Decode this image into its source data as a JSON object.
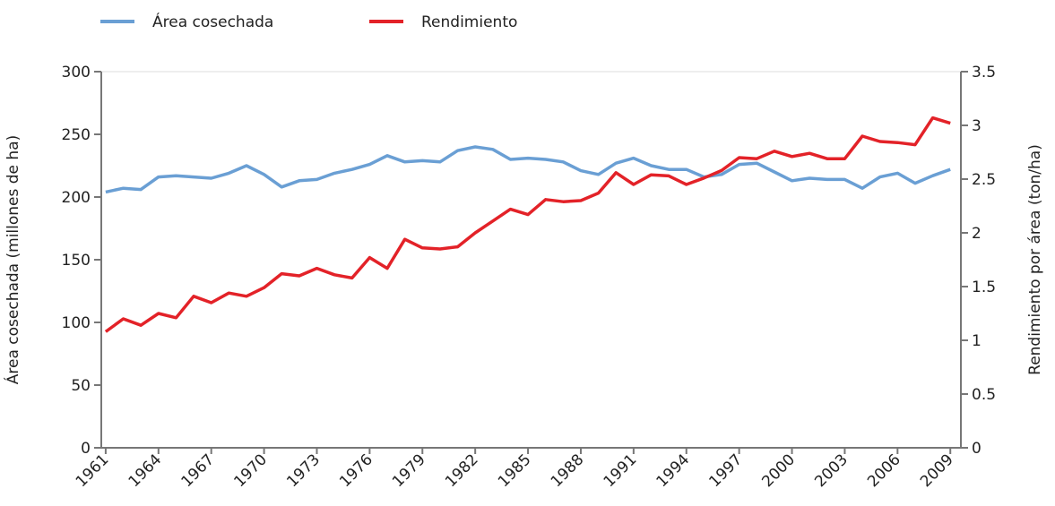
{
  "chart_data": {
    "type": "line",
    "y_label": "Área cosechada (millones de ha)",
    "y2_label": "Rendimiento por área (ton/ha)",
    "x": [
      1961,
      1962,
      1963,
      1964,
      1965,
      1966,
      1967,
      1968,
      1969,
      1970,
      1971,
      1972,
      1973,
      1974,
      1975,
      1976,
      1977,
      1978,
      1979,
      1980,
      1981,
      1982,
      1983,
      1984,
      1985,
      1986,
      1987,
      1988,
      1989,
      1990,
      1991,
      1992,
      1993,
      1994,
      1995,
      1996,
      1997,
      1998,
      1999,
      2000,
      2001,
      2002,
      2003,
      2004,
      2005,
      2006,
      2007,
      2008,
      2009
    ],
    "series": [
      {
        "name": "Área cosechada",
        "color": "#6a9fd4",
        "axis": "y",
        "values": [
          204,
          207,
          206,
          216,
          217,
          216,
          215,
          219,
          225,
          218,
          208,
          213,
          214,
          219,
          222,
          226,
          233,
          228,
          229,
          228,
          237,
          240,
          238,
          230,
          231,
          230,
          228,
          221,
          218,
          227,
          231,
          225,
          222,
          222,
          216,
          218,
          226,
          227,
          220,
          213,
          215,
          214,
          214,
          207,
          216,
          219,
          211,
          217,
          222
        ]
      },
      {
        "name": "Rendimiento",
        "color": "#e32228",
        "axis": "y2",
        "values": [
          1.08,
          1.2,
          1.14,
          1.25,
          1.21,
          1.41,
          1.35,
          1.44,
          1.41,
          1.49,
          1.62,
          1.6,
          1.67,
          1.61,
          1.58,
          1.77,
          1.67,
          1.94,
          1.86,
          1.85,
          1.87,
          2.0,
          2.11,
          2.22,
          2.17,
          2.31,
          2.29,
          2.3,
          2.37,
          2.56,
          2.45,
          2.54,
          2.53,
          2.45,
          2.51,
          2.58,
          2.7,
          2.69,
          2.76,
          2.71,
          2.74,
          2.69,
          2.69,
          2.9,
          2.85,
          2.84,
          2.82,
          3.07,
          3.02
        ]
      }
    ],
    "xlim": [
      1960.75,
      2009.6
    ],
    "xticks": [
      1961,
      1964,
      1967,
      1970,
      1973,
      1976,
      1979,
      1982,
      1985,
      1988,
      1991,
      1994,
      1997,
      2000,
      2003,
      2006,
      2009
    ],
    "ylim": [
      0,
      300
    ],
    "yticks": [
      0,
      50,
      100,
      150,
      200,
      250,
      300
    ],
    "y2lim": [
      0,
      3.5
    ],
    "y2ticks": [
      0,
      0.5,
      1,
      1.5,
      2,
      2.5,
      3,
      3.5
    ]
  }
}
